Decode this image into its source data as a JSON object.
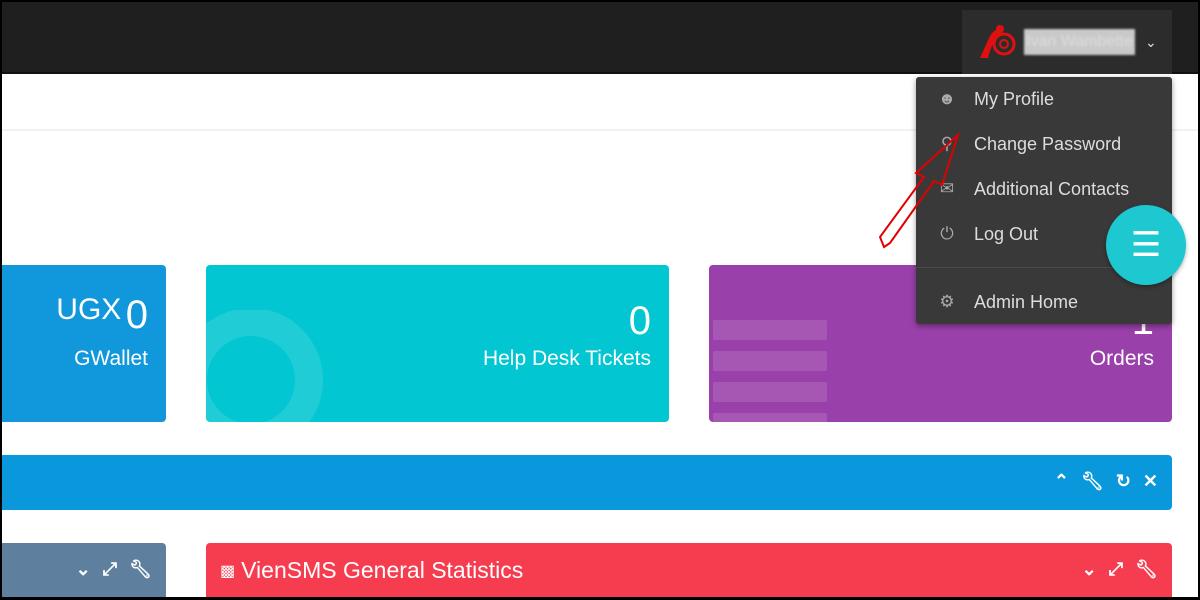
{
  "header": {
    "user_name": "Ivan Wambette",
    "chevron": "chevron-down-icon"
  },
  "user_menu": {
    "items": [
      {
        "label": "My Profile",
        "icon": "user-icon"
      },
      {
        "label": "Change Password",
        "icon": "key-icon"
      },
      {
        "label": "Additional Contacts",
        "icon": "envelope-icon"
      },
      {
        "label": "Log Out",
        "icon": "power-icon"
      },
      {
        "label": "Admin Home",
        "icon": "cogs-icon"
      }
    ]
  },
  "stats": {
    "wallet": {
      "currency": "UGX",
      "value": "0",
      "label": "GWallet"
    },
    "tickets": {
      "value": "0",
      "label": "Help Desk Tickets"
    },
    "orders": {
      "value": "1",
      "label": "Orders"
    }
  },
  "panels": {
    "stats_title": "VienSMS General Statistics"
  },
  "colors": {
    "wallet": "#1198dc",
    "tickets": "#02c6d1",
    "orders": "#9a40aa",
    "bar": "#0a98dc",
    "stats": "#f63d50",
    "menu": "#393939",
    "fab": "#1ec8d1",
    "annotation": "#e00000"
  }
}
